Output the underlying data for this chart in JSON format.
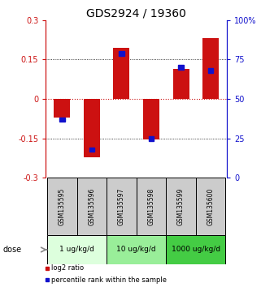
{
  "title": "GDS2924 / 19360",
  "samples": [
    "GSM135595",
    "GSM135596",
    "GSM135597",
    "GSM135598",
    "GSM135599",
    "GSM135600"
  ],
  "log2_ratio": [
    -0.07,
    -0.22,
    0.195,
    -0.155,
    0.115,
    0.23
  ],
  "percentile": [
    37,
    18,
    79,
    25,
    70,
    68
  ],
  "ylim_left": [
    -0.3,
    0.3
  ],
  "ylim_right": [
    0,
    100
  ],
  "yticks_left": [
    -0.3,
    -0.15,
    0,
    0.15,
    0.3
  ],
  "yticks_right": [
    0,
    25,
    50,
    75,
    100
  ],
  "ytick_labels_right": [
    "0",
    "25",
    "50",
    "75",
    "100%"
  ],
  "red_color": "#cc1111",
  "blue_color": "#1111cc",
  "bar_width": 0.55,
  "dose_groups": [
    {
      "label": "1 ug/kg/d",
      "indices": [
        0,
        1
      ],
      "color": "#ddffdd"
    },
    {
      "label": "10 ug/kg/d",
      "indices": [
        2,
        3
      ],
      "color": "#99ee99"
    },
    {
      "label": "1000 ug/kg/d",
      "indices": [
        4,
        5
      ],
      "color": "#44cc44"
    }
  ],
  "dose_label": "dose",
  "legend_red": "log2 ratio",
  "legend_blue": "percentile rank within the sample",
  "sample_bg_color": "#cccccc",
  "title_fontsize": 10
}
